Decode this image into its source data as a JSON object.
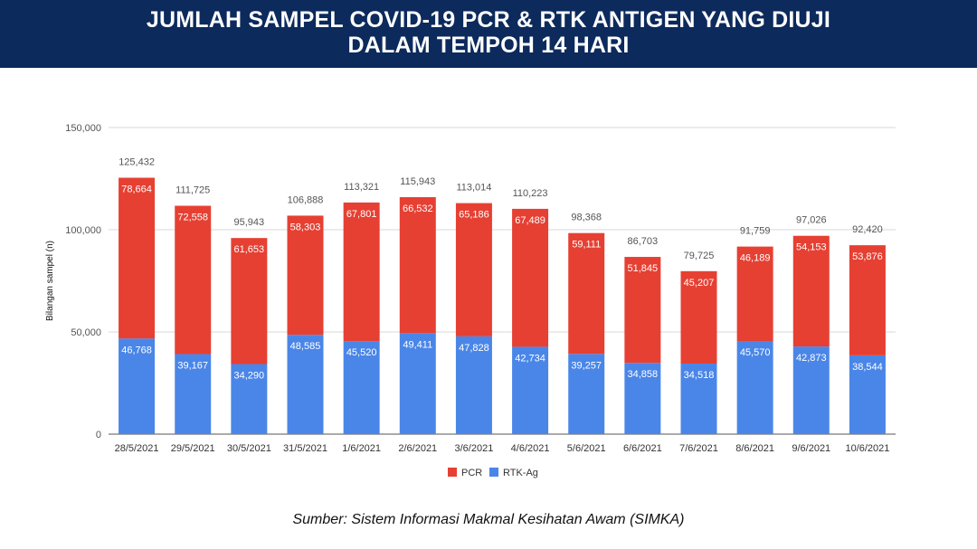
{
  "header": {
    "title_line1": "JUMLAH SAMPEL COVID-19 PCR & RTK ANTIGEN YANG DIUJI",
    "title_line2": "DALAM TEMPOH 14 HARI"
  },
  "chart_data": {
    "type": "bar",
    "stacked": true,
    "title": "JUMLAH SAMPEL COVID-19 PCR & RTK ANTIGEN YANG DIUJI DALAM TEMPOH 14 HARI",
    "xlabel": "",
    "ylabel": "Bilangan sampel (n)",
    "ylim": [
      0,
      150000
    ],
    "yticks": [
      0,
      50000,
      100000,
      150000
    ],
    "ytick_labels": [
      "0",
      "50,000",
      "100,000",
      "150,000"
    ],
    "grid": true,
    "legend_position": "bottom-center",
    "categories": [
      "28/5/2021",
      "29/5/2021",
      "30/5/2021",
      "31/5/2021",
      "1/6/2021",
      "2/6/2021",
      "3/6/2021",
      "4/6/2021",
      "5/6/2021",
      "6/6/2021",
      "7/6/2021",
      "8/6/2021",
      "9/6/2021",
      "10/6/2021"
    ],
    "series": [
      {
        "name": "RTK-Ag",
        "color": "#4a86e8",
        "values": [
          46768,
          39167,
          34290,
          48585,
          45520,
          49411,
          47828,
          42734,
          39257,
          34858,
          34518,
          45570,
          42873,
          38544
        ],
        "labels": [
          "46,768",
          "39,167",
          "34,290",
          "48,585",
          "45,520",
          "49,411",
          "47,828",
          "42,734",
          "39,257",
          "34,858",
          "34,518",
          "45,570",
          "42,873",
          "38,544"
        ]
      },
      {
        "name": "PCR",
        "color": "#e64033",
        "values": [
          78664,
          72558,
          61653,
          58303,
          67801,
          66532,
          65186,
          67489,
          59111,
          51845,
          45207,
          46189,
          54153,
          53876
        ],
        "labels": [
          "78,664",
          "72,558",
          "61,653",
          "58,303",
          "67,801",
          "66,532",
          "65,186",
          "67,489",
          "59,111",
          "51,845",
          "45,207",
          "46,189",
          "54,153",
          "53,876"
        ]
      }
    ],
    "totals": [
      125432,
      111725,
      95943,
      106888,
      113321,
      115943,
      113014,
      110223,
      98368,
      86703,
      79725,
      91759,
      97026,
      92420
    ],
    "total_labels": [
      "125,432",
      "111,725",
      "95,943",
      "106,888",
      "113,321",
      "115,943",
      "113,014",
      "110,223",
      "98,368",
      "86,703",
      "79,725",
      "91,759",
      "97,026",
      "92,420"
    ],
    "legend": [
      "PCR",
      "RTK-Ag"
    ]
  },
  "source": "Sumber: Sistem Informasi Makmal Kesihatan Awam (SIMKA)"
}
